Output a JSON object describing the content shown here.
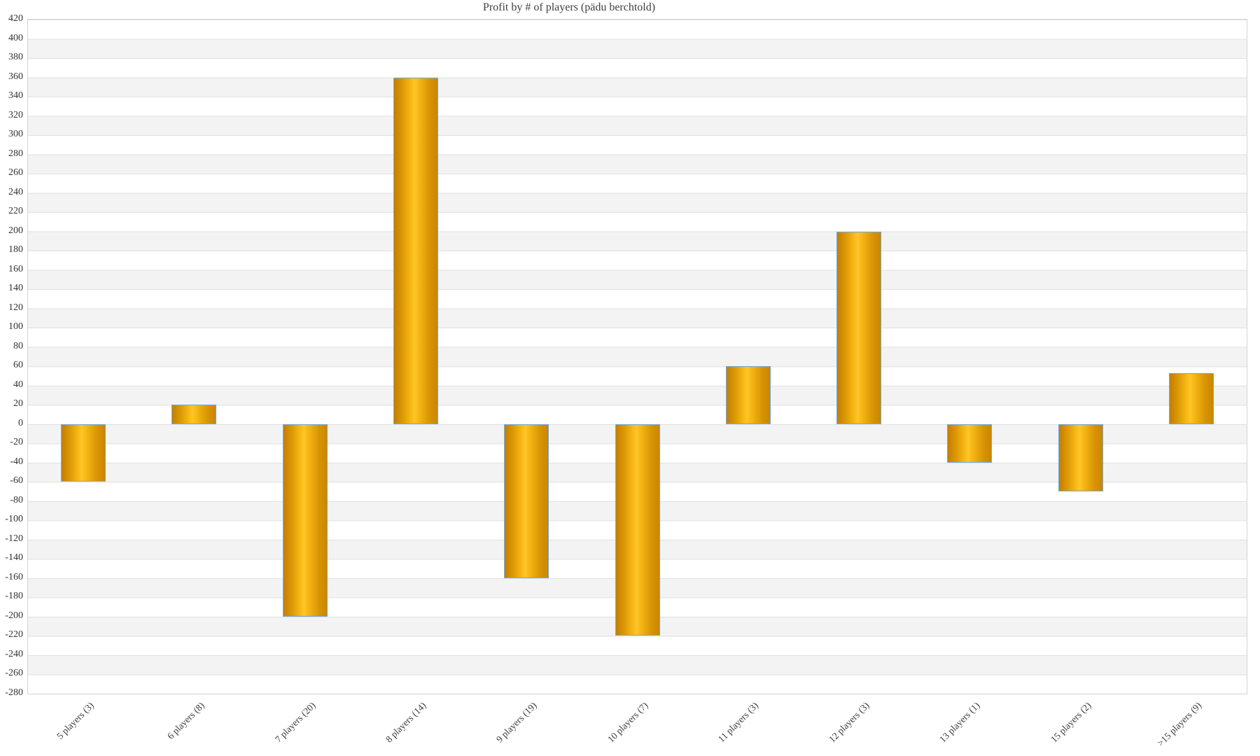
{
  "chart_data": {
    "type": "bar",
    "title": "Profit by # of players  (pädu berchtold)",
    "categories": [
      "5 players (3)",
      "6 players (8)",
      "7 players (20)",
      "8 players (14)",
      "9 players (19)",
      "10 players (7)",
      "11 players (3)",
      "12 players (3)",
      "13 players (1)",
      "15 players (2)",
      ">15 players (9)"
    ],
    "values": [
      -60,
      20,
      -200,
      360,
      -160,
      -220,
      60,
      200,
      -40,
      -70,
      53
    ],
    "xlabel": "",
    "ylabel": "",
    "ylim": [
      -280,
      420
    ],
    "ytick_step": 20,
    "grid": true,
    "legend": false,
    "colors": {
      "bar_center": "#ffc528",
      "bar_edge": "#c47e00",
      "bar_border": "#74a9d8",
      "band_light": "#ffffff",
      "band_dark": "#f3f3f3",
      "gridline": "#e1e1e1",
      "text": "#3a3a3a"
    }
  }
}
